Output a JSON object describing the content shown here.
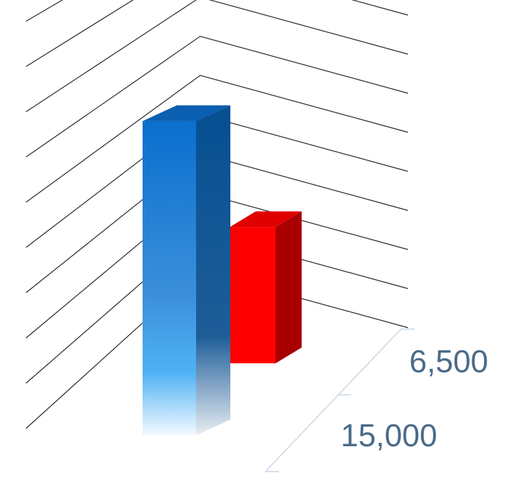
{
  "chart_data": {
    "type": "bar",
    "style": "3d-column",
    "categories": [
      "15,000",
      "6,500"
    ],
    "values": [
      15000,
      6500
    ],
    "colors": [
      "#1a7fd8",
      "#ff0000"
    ],
    "ylim": [
      0,
      18000
    ],
    "grid": true,
    "title": "",
    "xlabel": "",
    "ylabel": ""
  }
}
